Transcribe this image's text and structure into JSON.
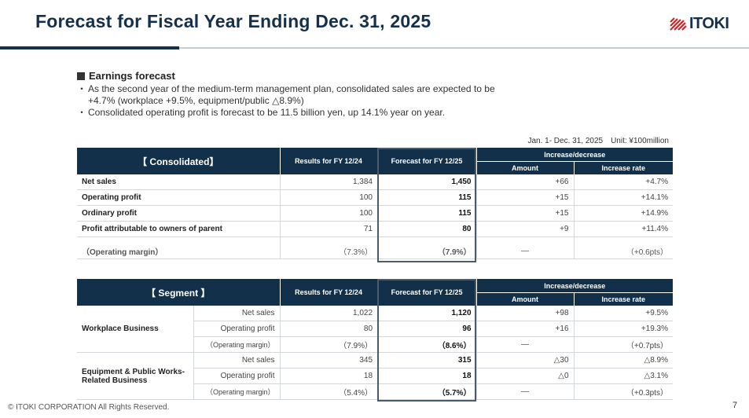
{
  "header": {
    "title": "Forecast for Fiscal Year Ending Dec. 31, 2025",
    "logo_text": "ITOKI"
  },
  "section": {
    "heading": "Earnings forecast",
    "bullets": [
      "As the second year of the medium-term management plan, consolidated sales are expected to be +4.7% (workplace +9.5%, equipment/public △8.9%)",
      "Consolidated operating profit is forecast to be 11.5 billion yen, up 14.1% year on year."
    ],
    "bullet_mark": "・"
  },
  "unit_note": "Jan. 1- Dec. 31, 2025　Unit: ¥100million",
  "consolidated": {
    "header_label": "【 Consolidated】",
    "col_results": "Results for FY 12/24",
    "col_forecast": "Forecast for FY 12/25",
    "col_incdec": "Increase/decrease",
    "col_amount": "Amount",
    "col_rate": "Increase rate",
    "rows": [
      {
        "label": "Net sales",
        "results": "1,384",
        "forecast": "1,450",
        "amount": "+66",
        "rate": "+4.7%"
      },
      {
        "label": "Operating profit",
        "results": "100",
        "forecast": "115",
        "amount": "+15",
        "rate": "+14.1%"
      },
      {
        "label": "Ordinary profit",
        "results": "100",
        "forecast": "115",
        "amount": "+15",
        "rate": "+14.9%"
      },
      {
        "label": "Profit attributable to owners of parent",
        "results": "71",
        "forecast": "80",
        "amount": "+9",
        "rate": "+11.4%"
      }
    ],
    "margin_row": {
      "label": "（Operating margin）",
      "results": "（7.3%）",
      "forecast": "（7.9%）",
      "amount": "—",
      "rate": "（+0.6pts）"
    }
  },
  "segment": {
    "header_label": "【 Segment 】",
    "col_results": "Results for FY 12/24",
    "col_forecast": "Forecast for FY 12/25",
    "col_incdec": "Increase/decrease",
    "col_amount": "Amount",
    "col_rate": "Increase rate",
    "groups": [
      {
        "name": "Workplace Business",
        "rows": [
          {
            "label": "Net sales",
            "results": "1,022",
            "forecast": "1,120",
            "amount": "+98",
            "rate": "+9.5%"
          },
          {
            "label": "Operating profit",
            "results": "80",
            "forecast": "96",
            "amount": "+16",
            "rate": "+19.3%"
          },
          {
            "label": "（Operating margin）",
            "results": "（7.9%）",
            "forecast": "（8.6%）",
            "amount": "—",
            "rate": "（+0.7pts）"
          }
        ]
      },
      {
        "name": "Equipment & Public Works-Related Business",
        "rows": [
          {
            "label": "Net sales",
            "results": "345",
            "forecast": "315",
            "amount": "△30",
            "rate": "△8.9%"
          },
          {
            "label": "Operating profit",
            "results": "18",
            "forecast": "18",
            "amount": "△0",
            "rate": "△3.1%"
          },
          {
            "label": "（Operating margin）",
            "results": "（5.4%）",
            "forecast": "（5.7%）",
            "amount": "—",
            "rate": "（+0.3pts）"
          }
        ]
      }
    ]
  },
  "footer": {
    "copyright": "© ITOKI CORPORATION All Rights Reserved.",
    "page": "7"
  },
  "colors": {
    "navy": "#12304a",
    "rule_light": "#c5ccd4"
  }
}
